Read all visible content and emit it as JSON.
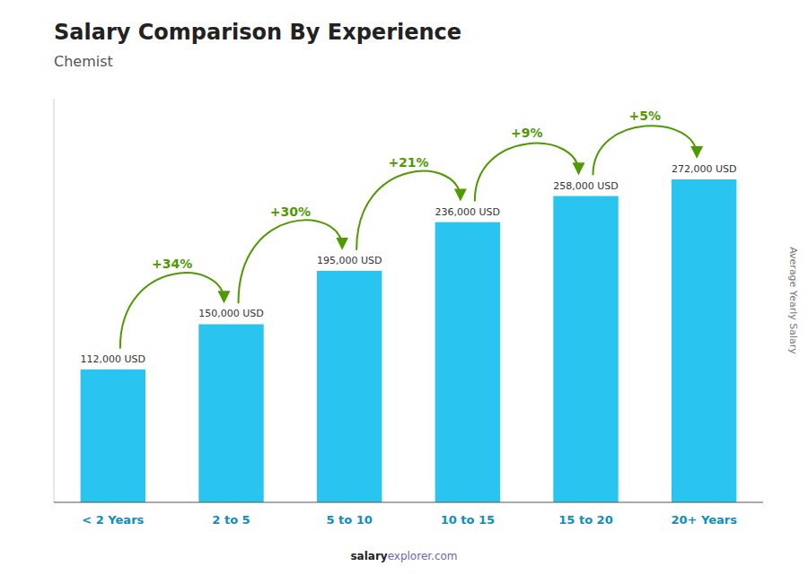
{
  "chart_data": {
    "type": "bar",
    "title": "Salary Comparison By Experience",
    "subtitle": "Chemist",
    "ylabel": "Average Yearly Salary",
    "categories": [
      "< 2 Years",
      "2 to 5",
      "5 to 10",
      "10 to 15",
      "15 to 20",
      "20+ Years"
    ],
    "values": [
      112000,
      150000,
      195000,
      236000,
      258000,
      272000
    ],
    "value_labels": [
      "112,000 USD",
      "150,000 USD",
      "195,000 USD",
      "236,000 USD",
      "258,000 USD",
      "272,000 USD"
    ],
    "data_labels": true,
    "annotations": [
      "+34%",
      "+30%",
      "+21%",
      "+9%",
      "+5%"
    ],
    "footer": [
      "salary",
      "explorer.com"
    ],
    "color": "#29c4f0",
    "ylim": [
      0,
      340000
    ],
    "tick_labels": "x"
  }
}
